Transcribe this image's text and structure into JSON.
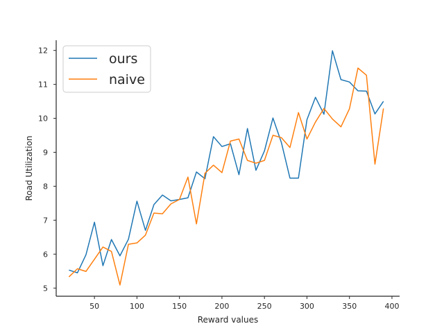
{
  "chart_data": {
    "type": "line",
    "title": "",
    "xlabel": "Reward values",
    "ylabel": "Road Utilization",
    "xlim": [
      5,
      409
    ],
    "ylim": [
      4.76,
      12.3
    ],
    "xticks": [
      50,
      100,
      150,
      200,
      250,
      300,
      350,
      400
    ],
    "yticks": [
      5,
      6,
      7,
      8,
      9,
      10,
      11,
      12
    ],
    "grid": false,
    "legend_position": "top-left",
    "x": [
      20,
      30,
      40,
      50,
      60,
      70,
      80,
      90,
      100,
      110,
      120,
      130,
      140,
      150,
      160,
      170,
      180,
      190,
      200,
      210,
      220,
      230,
      240,
      250,
      260,
      270,
      280,
      290,
      300,
      310,
      320,
      330,
      340,
      350,
      360,
      370,
      380,
      390
    ],
    "series": [
      {
        "name": "ours",
        "color": "#1f77b4",
        "values": [
          5.53,
          5.45,
          5.98,
          6.94,
          5.66,
          6.43,
          5.95,
          6.44,
          7.56,
          6.7,
          7.46,
          7.74,
          7.57,
          7.61,
          7.66,
          8.42,
          8.22,
          9.46,
          9.17,
          9.25,
          8.34,
          9.7,
          8.47,
          9.04,
          10.01,
          9.28,
          8.24,
          8.24,
          9.96,
          10.62,
          10.12,
          11.99,
          11.14,
          11.07,
          10.81,
          10.8,
          10.13,
          10.5
        ]
      },
      {
        "name": "naive",
        "color": "#ff7f0e",
        "values": [
          5.33,
          5.57,
          5.49,
          5.85,
          6.21,
          6.08,
          5.09,
          6.29,
          6.33,
          6.56,
          7.21,
          7.19,
          7.48,
          7.61,
          8.27,
          6.89,
          8.38,
          8.62,
          8.4,
          9.33,
          9.39,
          8.76,
          8.68,
          8.76,
          9.5,
          9.43,
          9.14,
          10.17,
          9.39,
          9.89,
          10.29,
          9.98,
          9.75,
          10.28,
          11.48,
          11.27,
          8.65,
          10.29
        ]
      }
    ]
  }
}
